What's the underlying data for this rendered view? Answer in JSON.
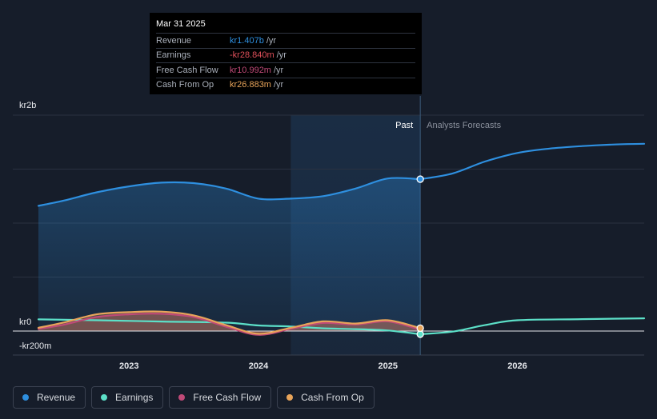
{
  "colors": {
    "revenue": "#2e8fdf",
    "earnings": "#5ce0c8",
    "fcf": "#c04a78",
    "cfo": "#e8a45a",
    "background": "#161d2a",
    "grid": "#2a3140"
  },
  "tooltip": {
    "date": "Mar 31 2025",
    "rows": [
      {
        "label": "Revenue",
        "value": "kr1.407b",
        "unit": "/yr",
        "color": "#2e8fdf"
      },
      {
        "label": "Earnings",
        "value": "-kr28.840m",
        "unit": "/yr",
        "color": "#e0505a"
      },
      {
        "label": "Free Cash Flow",
        "value": "kr10.992m",
        "unit": "/yr",
        "color": "#c04a78"
      },
      {
        "label": "Cash From Op",
        "value": "kr26.883m",
        "unit": "/yr",
        "color": "#e8a45a"
      }
    ]
  },
  "legend": [
    {
      "name": "Revenue",
      "color": "#2e8fdf"
    },
    {
      "name": "Earnings",
      "color": "#5ce0c8"
    },
    {
      "name": "Free Cash Flow",
      "color": "#c04a78"
    },
    {
      "name": "Cash From Op",
      "color": "#e8a45a"
    }
  ],
  "chart_data": {
    "type": "line",
    "title": "",
    "units": "SEK",
    "y_labels": {
      "top": "kr2b",
      "zero": "kr0",
      "bottom": "-kr200m"
    },
    "ylim": [
      -200,
      2000
    ],
    "xlim": [
      2022.3,
      2026.98
    ],
    "x_ticks": [
      {
        "label": "2023",
        "x": 2023.0
      },
      {
        "label": "2024",
        "x": 2024.0
      },
      {
        "label": "2025",
        "x": 2025.0
      },
      {
        "label": "2026",
        "x": 2026.0
      }
    ],
    "past_label": "Past",
    "forecast_label": "Analysts Forecasts",
    "past_start": 2024.25,
    "divider_x": 2025.25,
    "series": [
      {
        "name": "Revenue",
        "key": "revenue",
        "filled": true,
        "points": [
          [
            2022.3,
            1160
          ],
          [
            2022.5,
            1210
          ],
          [
            2022.75,
            1285
          ],
          [
            2023.0,
            1340
          ],
          [
            2023.25,
            1375
          ],
          [
            2023.5,
            1370
          ],
          [
            2023.75,
            1320
          ],
          [
            2024.0,
            1227
          ],
          [
            2024.25,
            1227
          ],
          [
            2024.5,
            1250
          ],
          [
            2024.75,
            1320
          ],
          [
            2025.0,
            1413
          ],
          [
            2025.25,
            1407
          ]
        ],
        "forecast": [
          [
            2025.25,
            1407
          ],
          [
            2025.5,
            1460
          ],
          [
            2025.75,
            1570
          ],
          [
            2026.0,
            1650
          ],
          [
            2026.25,
            1690
          ],
          [
            2026.5,
            1713
          ],
          [
            2026.75,
            1728
          ],
          [
            2026.98,
            1735
          ]
        ],
        "marker": [
          2025.25,
          1407
        ]
      },
      {
        "name": "Earnings",
        "key": "earnings",
        "filled": false,
        "points": [
          [
            2022.3,
            108
          ],
          [
            2022.75,
            100
          ],
          [
            2023.25,
            88
          ],
          [
            2023.75,
            78
          ],
          [
            2024.0,
            52
          ],
          [
            2024.25,
            42
          ],
          [
            2024.5,
            25
          ],
          [
            2024.75,
            18
          ],
          [
            2025.0,
            5
          ],
          [
            2025.25,
            -29
          ]
        ],
        "forecast": [
          [
            2025.25,
            -29
          ],
          [
            2025.5,
            -5
          ],
          [
            2025.75,
            55
          ],
          [
            2026.0,
            100
          ],
          [
            2026.5,
            110
          ],
          [
            2026.98,
            118
          ]
        ],
        "marker": [
          2025.25,
          -29
        ]
      },
      {
        "name": "Free Cash Flow",
        "key": "fcf",
        "filled": true,
        "points": [
          [
            2022.3,
            20
          ],
          [
            2022.5,
            60
          ],
          [
            2022.75,
            130
          ],
          [
            2023.0,
            155
          ],
          [
            2023.25,
            160
          ],
          [
            2023.5,
            130
          ],
          [
            2023.75,
            40
          ],
          [
            2024.0,
            -35
          ],
          [
            2024.25,
            20
          ],
          [
            2024.5,
            75
          ],
          [
            2024.75,
            60
          ],
          [
            2025.0,
            90
          ],
          [
            2025.25,
            11
          ]
        ],
        "forecast": [],
        "marker": null
      },
      {
        "name": "Cash From Op",
        "key": "cfo",
        "filled": true,
        "points": [
          [
            2022.3,
            30
          ],
          [
            2022.5,
            80
          ],
          [
            2022.75,
            155
          ],
          [
            2023.0,
            175
          ],
          [
            2023.25,
            180
          ],
          [
            2023.5,
            145
          ],
          [
            2023.75,
            55
          ],
          [
            2024.0,
            -25
          ],
          [
            2024.25,
            30
          ],
          [
            2024.5,
            90
          ],
          [
            2024.75,
            70
          ],
          [
            2025.0,
            100
          ],
          [
            2025.25,
            27
          ]
        ],
        "forecast": [],
        "marker": [
          2025.25,
          27
        ]
      }
    ]
  }
}
